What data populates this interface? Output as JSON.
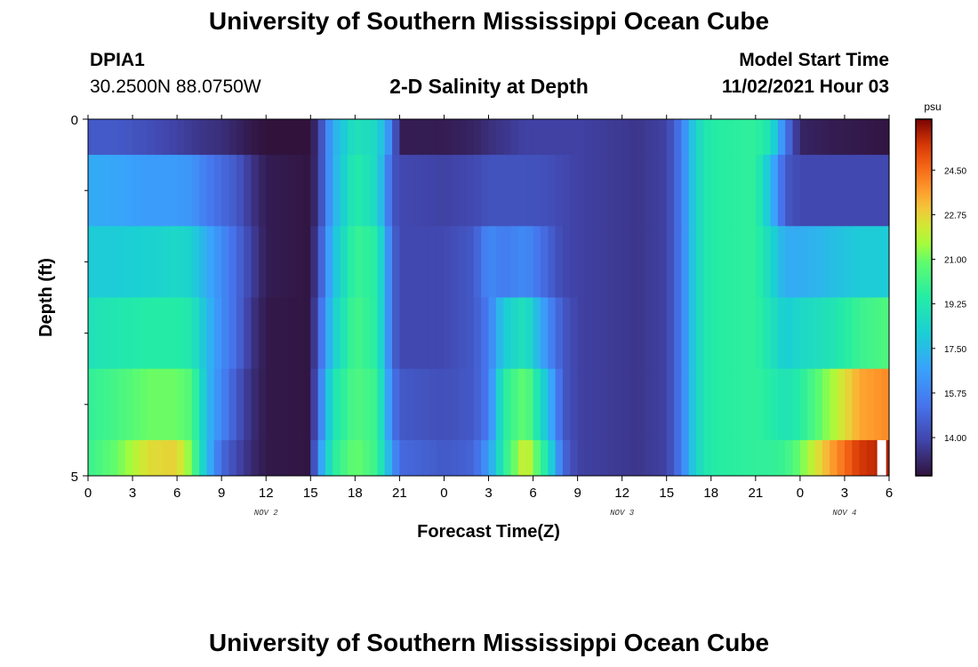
{
  "header": {
    "title": "University of Southern Mississippi Ocean Cube",
    "station_id": "DPIA1",
    "coords": "30.2500N  88.0750W",
    "plot_title": "2-D Salinity at Depth",
    "model_start_label": "Model Start Time",
    "model_start_value": "11/02/2021 Hour 03"
  },
  "footer": {
    "title": "University of Southern Mississippi Ocean Cube"
  },
  "colors": {
    "accent": "#000000"
  },
  "chart_data": {
    "type": "heatmap",
    "title": "2-D Salinity at Depth",
    "xlabel": "Forecast Time(Z)",
    "ylabel": "Depth (ft)",
    "xlim": [
      0,
      54
    ],
    "ylim": [
      0,
      5
    ],
    "x_ticks": [
      {
        "hours": 0,
        "label": "0"
      },
      {
        "hours": 3,
        "label": "3"
      },
      {
        "hours": 6,
        "label": "6"
      },
      {
        "hours": 9,
        "label": "9"
      },
      {
        "hours": 12,
        "label": "12"
      },
      {
        "hours": 15,
        "label": "15"
      },
      {
        "hours": 18,
        "label": "18"
      },
      {
        "hours": 21,
        "label": "21"
      },
      {
        "hours": 24,
        "label": "0"
      },
      {
        "hours": 27,
        "label": "3"
      },
      {
        "hours": 30,
        "label": "6"
      },
      {
        "hours": 33,
        "label": "9"
      },
      {
        "hours": 36,
        "label": "12"
      },
      {
        "hours": 39,
        "label": "15"
      },
      {
        "hours": 42,
        "label": "18"
      },
      {
        "hours": 45,
        "label": "21"
      },
      {
        "hours": 48,
        "label": "0"
      },
      {
        "hours": 51,
        "label": "3"
      },
      {
        "hours": 54,
        "label": "6"
      }
    ],
    "day_labels": [
      {
        "hours": 12,
        "label": "NOV 2"
      },
      {
        "hours": 36,
        "label": "NOV 3"
      },
      {
        "hours": 51,
        "label": "NOV 4"
      }
    ],
    "y_ticks": [
      {
        "depth": 0,
        "label": "0"
      },
      {
        "depth": 5,
        "label": "5"
      }
    ],
    "y_minor_ticks": [
      1,
      2,
      3,
      4
    ],
    "depth_rows": [
      0.25,
      1.0,
      2.0,
      3.0,
      4.0,
      4.75
    ],
    "colorbar": {
      "unit": "psu",
      "range": [
        12.5,
        26.5
      ],
      "labels": [
        "24.50",
        "22.75",
        "21.00",
        "19.25",
        "17.50",
        "15.75",
        "14.00"
      ]
    },
    "missing_cells": [
      {
        "row": 5,
        "hours": 53.5
      }
    ],
    "control_points": [
      {
        "t": 0,
        "v": [
          14.5,
          17.0,
          18.0,
          19.0,
          19.8,
          20.0
        ]
      },
      {
        "t": 2,
        "v": [
          14.5,
          16.8,
          18.0,
          19.2,
          20.3,
          21.0
        ]
      },
      {
        "t": 4,
        "v": [
          14.2,
          16.5,
          18.2,
          19.5,
          21.0,
          22.5
        ]
      },
      {
        "t": 6,
        "v": [
          13.8,
          16.5,
          18.5,
          19.5,
          21.0,
          22.8
        ]
      },
      {
        "t": 7,
        "v": [
          13.6,
          16.3,
          18.2,
          19.2,
          20.5,
          21.0
        ]
      },
      {
        "t": 8,
        "v": [
          13.4,
          15.5,
          17.0,
          17.5,
          17.5,
          17.5
        ]
      },
      {
        "t": 9,
        "v": [
          13.3,
          15.0,
          16.0,
          16.0,
          15.8,
          15.0
        ]
      },
      {
        "t": 10,
        "v": [
          13.0,
          14.5,
          15.0,
          15.0,
          14.5,
          14.0
        ]
      },
      {
        "t": 11,
        "v": [
          12.7,
          13.5,
          13.8,
          13.5,
          13.3,
          13.2
        ]
      },
      {
        "t": 12,
        "v": [
          12.5,
          12.8,
          12.8,
          12.7,
          12.7,
          12.7
        ]
      },
      {
        "t": 15,
        "v": [
          12.5,
          12.6,
          12.6,
          12.6,
          12.6,
          12.6
        ]
      },
      {
        "t": 15.5,
        "v": [
          13.5,
          13.5,
          14.0,
          14.5,
          15.0,
          16.0
        ]
      },
      {
        "t": 16.5,
        "v": [
          17.0,
          17.0,
          17.5,
          18.0,
          19.0,
          19.5
        ]
      },
      {
        "t": 18,
        "v": [
          19.0,
          19.5,
          20.0,
          20.3,
          20.5,
          21.0
        ]
      },
      {
        "t": 19.5,
        "v": [
          18.5,
          18.5,
          19.5,
          19.5,
          20.0,
          20.0
        ]
      },
      {
        "t": 20.5,
        "v": [
          15.5,
          14.5,
          15.0,
          15.0,
          15.5,
          16.5
        ]
      },
      {
        "t": 21,
        "v": [
          12.8,
          14.0,
          14.0,
          14.0,
          14.5,
          15.0
        ]
      },
      {
        "t": 24,
        "v": [
          12.8,
          13.8,
          14.0,
          14.0,
          14.2,
          14.5
        ]
      },
      {
        "t": 26,
        "v": [
          13.0,
          14.0,
          14.5,
          14.5,
          14.5,
          14.8
        ]
      },
      {
        "t": 27,
        "v": [
          13.3,
          14.3,
          16.0,
          15.5,
          15.5,
          16.5
        ]
      },
      {
        "t": 28,
        "v": [
          13.5,
          14.3,
          15.5,
          18.0,
          19.5,
          19.5
        ]
      },
      {
        "t": 29.5,
        "v": [
          13.8,
          14.3,
          16.0,
          19.0,
          21.0,
          22.5
        ]
      },
      {
        "t": 31,
        "v": [
          13.8,
          14.2,
          14.8,
          16.0,
          17.5,
          19.0
        ]
      },
      {
        "t": 32,
        "v": [
          13.8,
          14.0,
          14.0,
          14.5,
          14.5,
          15.0
        ]
      },
      {
        "t": 33,
        "v": [
          13.8,
          13.8,
          13.8,
          13.8,
          13.8,
          13.8
        ]
      },
      {
        "t": 37,
        "v": [
          13.5,
          13.5,
          13.5,
          13.5,
          13.5,
          13.5
        ]
      },
      {
        "t": 39,
        "v": [
          13.8,
          13.8,
          13.8,
          13.8,
          13.8,
          13.8
        ]
      },
      {
        "t": 40,
        "v": [
          15.5,
          15.5,
          15.5,
          15.5,
          15.5,
          15.5
        ]
      },
      {
        "t": 41,
        "v": [
          18.5,
          18.5,
          18.5,
          18.5,
          18.5,
          18.5
        ]
      },
      {
        "t": 42,
        "v": [
          19.5,
          19.5,
          19.5,
          19.5,
          19.5,
          19.5
        ]
      },
      {
        "t": 45,
        "v": [
          19.8,
          19.8,
          19.8,
          19.8,
          19.8,
          19.8
        ]
      },
      {
        "t": 46,
        "v": [
          19.0,
          17.5,
          18.5,
          19.0,
          19.5,
          19.8
        ]
      },
      {
        "t": 47,
        "v": [
          15.5,
          14.5,
          17.0,
          18.0,
          19.0,
          20.0
        ]
      },
      {
        "t": 48,
        "v": [
          13.0,
          14.0,
          17.0,
          18.5,
          19.5,
          21.0
        ]
      },
      {
        "t": 50,
        "v": [
          12.8,
          14.0,
          17.5,
          19.0,
          21.5,
          23.5
        ]
      },
      {
        "t": 52,
        "v": [
          12.7,
          14.0,
          18.0,
          20.0,
          23.5,
          25.5
        ]
      },
      {
        "t": 54,
        "v": [
          12.6,
          14.0,
          18.0,
          20.5,
          24.0,
          26.0
        ]
      }
    ]
  }
}
